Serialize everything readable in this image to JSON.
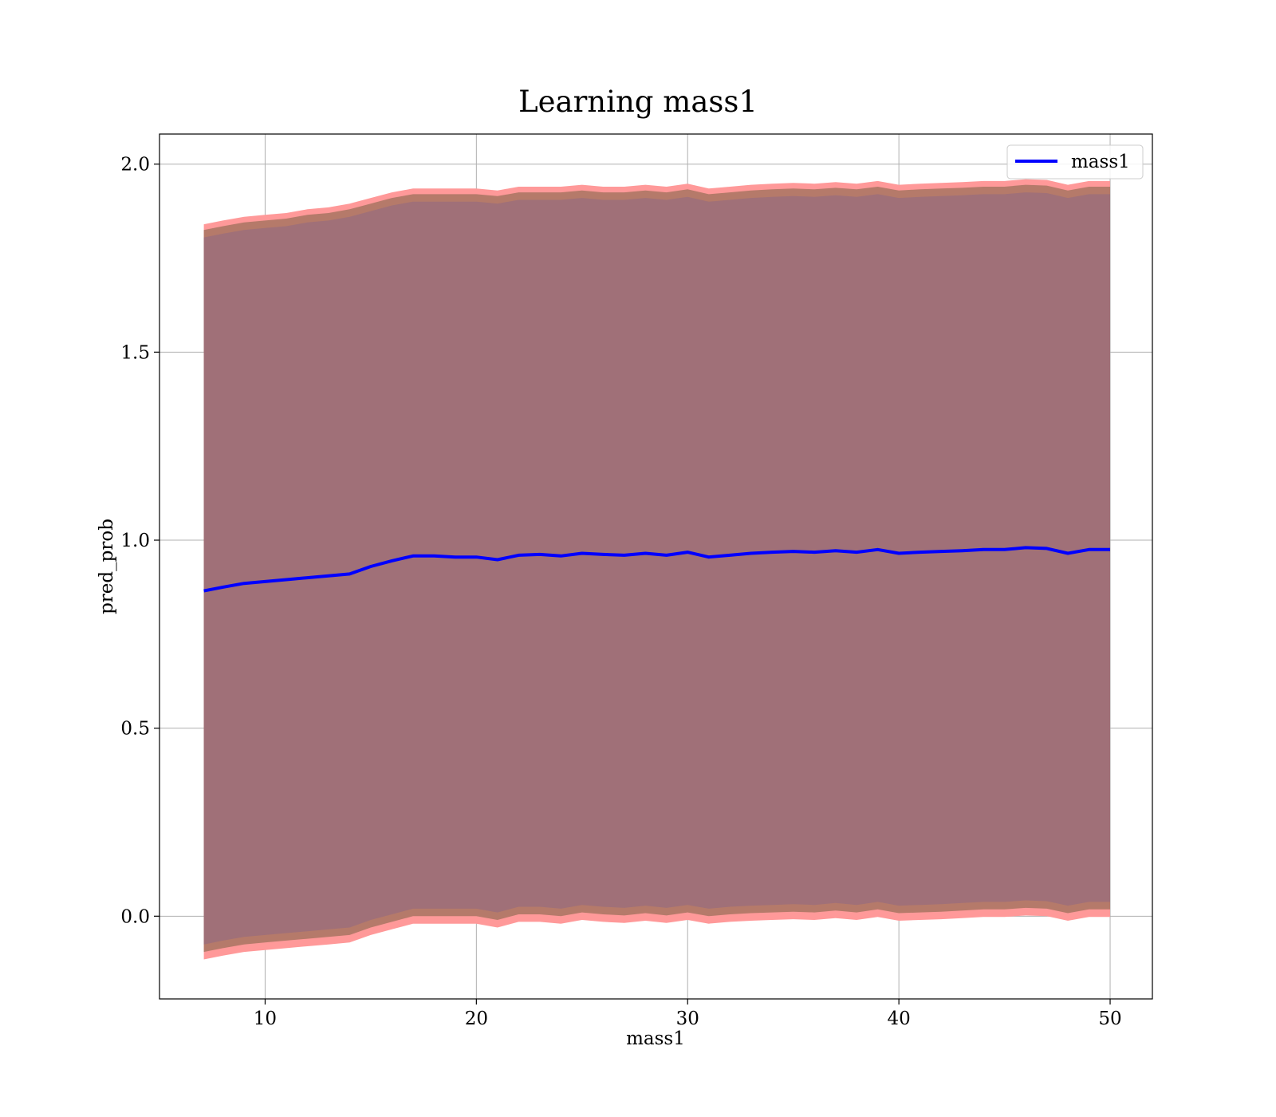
{
  "chart_data": {
    "type": "line",
    "title": "Learning mass1",
    "xlabel": "mass1",
    "ylabel": "pred_prob",
    "xlim": [
      5,
      52
    ],
    "ylim": [
      -0.22,
      2.08
    ],
    "x_ticks": [
      10,
      20,
      30,
      40,
      50
    ],
    "x_tick_labels": [
      "10",
      "20",
      "30",
      "40",
      "50"
    ],
    "y_ticks": [
      0.0,
      0.5,
      1.0,
      1.5,
      2.0
    ],
    "y_tick_labels": [
      "0.0",
      "0.5",
      "1.0",
      "1.5",
      "2.0"
    ],
    "grid": true,
    "legend": {
      "position": "top-right",
      "entries": [
        "mass1"
      ]
    },
    "series": [
      {
        "name": "mass1",
        "color": "#0000ff",
        "x": [
          7.1,
          8,
          9,
          10,
          11,
          12,
          13,
          14,
          15,
          16,
          17,
          18,
          19,
          20,
          21,
          22,
          23,
          24,
          25,
          26,
          27,
          28,
          29,
          30,
          31,
          32,
          33,
          34,
          35,
          36,
          37,
          38,
          39,
          40,
          41,
          42,
          43,
          44,
          45,
          46,
          47,
          48,
          49,
          50
        ],
        "y": [
          0.865,
          0.875,
          0.885,
          0.89,
          0.895,
          0.9,
          0.905,
          0.91,
          0.93,
          0.945,
          0.958,
          0.958,
          0.955,
          0.955,
          0.948,
          0.96,
          0.962,
          0.958,
          0.965,
          0.962,
          0.96,
          0.965,
          0.96,
          0.968,
          0.955,
          0.96,
          0.965,
          0.968,
          0.97,
          0.968,
          0.972,
          0.968,
          0.975,
          0.965,
          0.968,
          0.97,
          0.972,
          0.975,
          0.975,
          0.98,
          0.978,
          0.965,
          0.975,
          0.975
        ]
      }
    ],
    "bands": [
      {
        "color": "#ff9999",
        "upper": [
          1.84,
          1.85,
          1.86,
          1.865,
          1.87,
          1.88,
          1.885,
          1.895,
          1.91,
          1.925,
          1.935,
          1.935,
          1.935,
          1.935,
          1.93,
          1.94,
          1.94,
          1.94,
          1.945,
          1.94,
          1.94,
          1.945,
          1.94,
          1.948,
          1.935,
          1.94,
          1.945,
          1.948,
          1.95,
          1.948,
          1.952,
          1.948,
          1.955,
          1.945,
          1.948,
          1.95,
          1.952,
          1.955,
          1.955,
          1.96,
          1.958,
          1.945,
          1.955,
          1.955
        ],
        "lower": [
          -0.115,
          -0.105,
          -0.095,
          -0.09,
          -0.085,
          -0.08,
          -0.075,
          -0.07,
          -0.05,
          -0.035,
          -0.02,
          -0.02,
          -0.02,
          -0.02,
          -0.03,
          -0.015,
          -0.015,
          -0.02,
          -0.01,
          -0.015,
          -0.018,
          -0.012,
          -0.018,
          -0.01,
          -0.02,
          -0.015,
          -0.012,
          -0.01,
          -0.008,
          -0.01,
          -0.005,
          -0.01,
          -0.002,
          -0.012,
          -0.01,
          -0.008,
          -0.005,
          -0.002,
          -0.002,
          0.002,
          0.0,
          -0.012,
          -0.002,
          -0.002
        ]
      },
      {
        "color": "#b57a6a",
        "upper": [
          1.825,
          1.835,
          1.845,
          1.85,
          1.855,
          1.865,
          1.87,
          1.88,
          1.895,
          1.91,
          1.92,
          1.92,
          1.92,
          1.92,
          1.915,
          1.925,
          1.925,
          1.925,
          1.93,
          1.925,
          1.925,
          1.93,
          1.925,
          1.933,
          1.92,
          1.925,
          1.93,
          1.933,
          1.935,
          1.933,
          1.937,
          1.933,
          1.94,
          1.93,
          1.933,
          1.935,
          1.937,
          1.94,
          1.94,
          1.945,
          1.943,
          1.93,
          1.94,
          1.94
        ],
        "lower": [
          -0.095,
          -0.085,
          -0.075,
          -0.07,
          -0.065,
          -0.06,
          -0.055,
          -0.05,
          -0.03,
          -0.015,
          0.0,
          0.0,
          0.0,
          0.0,
          -0.01,
          0.005,
          0.005,
          0.0,
          0.01,
          0.005,
          0.002,
          0.008,
          0.002,
          0.01,
          0.0,
          0.005,
          0.008,
          0.01,
          0.012,
          0.01,
          0.015,
          0.01,
          0.018,
          0.008,
          0.01,
          0.012,
          0.015,
          0.018,
          0.018,
          0.022,
          0.02,
          0.008,
          0.018,
          0.018
        ]
      },
      {
        "color": "#a07078",
        "upper": [
          1.805,
          1.815,
          1.825,
          1.83,
          1.835,
          1.845,
          1.85,
          1.86,
          1.875,
          1.89,
          1.9,
          1.9,
          1.9,
          1.9,
          1.895,
          1.905,
          1.905,
          1.905,
          1.91,
          1.905,
          1.905,
          1.91,
          1.905,
          1.913,
          1.9,
          1.905,
          1.91,
          1.913,
          1.915,
          1.913,
          1.917,
          1.913,
          1.92,
          1.91,
          1.913,
          1.915,
          1.917,
          1.92,
          1.92,
          1.925,
          1.923,
          1.91,
          1.92,
          1.92
        ],
        "lower": [
          -0.075,
          -0.065,
          -0.055,
          -0.05,
          -0.045,
          -0.04,
          -0.035,
          -0.03,
          -0.01,
          0.005,
          0.02,
          0.02,
          0.02,
          0.02,
          0.01,
          0.025,
          0.025,
          0.02,
          0.03,
          0.025,
          0.022,
          0.028,
          0.022,
          0.03,
          0.02,
          0.025,
          0.028,
          0.03,
          0.032,
          0.03,
          0.035,
          0.03,
          0.038,
          0.028,
          0.03,
          0.032,
          0.035,
          0.038,
          0.038,
          0.042,
          0.04,
          0.028,
          0.038,
          0.038
        ]
      }
    ]
  }
}
